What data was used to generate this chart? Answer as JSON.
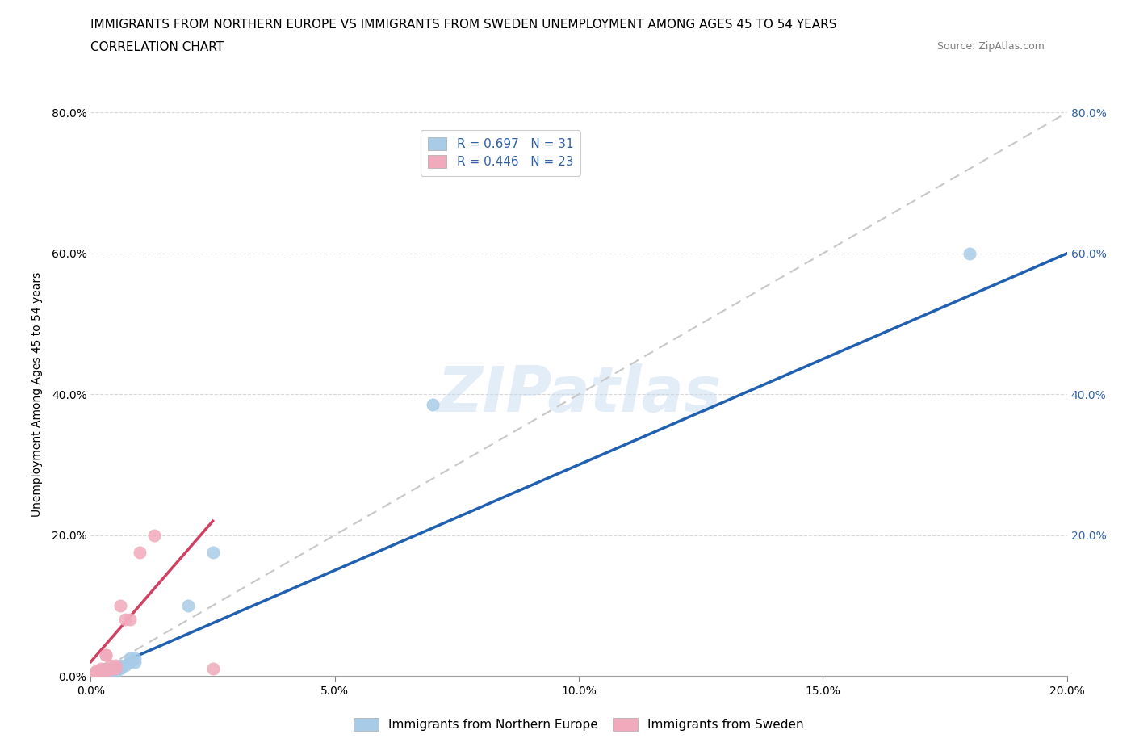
{
  "title_line1": "IMMIGRANTS FROM NORTHERN EUROPE VS IMMIGRANTS FROM SWEDEN UNEMPLOYMENT AMONG AGES 45 TO 54 YEARS",
  "title_line2": "CORRELATION CHART",
  "source": "Source: ZipAtlas.com",
  "ylabel": "Unemployment Among Ages 45 to 54 years",
  "watermark": "ZIPatlas",
  "blue_R": 0.697,
  "blue_N": 31,
  "pink_R": 0.446,
  "pink_N": 23,
  "blue_color": "#A8CCE8",
  "pink_color": "#F0AABB",
  "blue_line_color": "#2060B0",
  "pink_line_color": "#D04060",
  "trend_line_color": "#C8C8C8",
  "blue_label": "Immigrants from Northern Europe",
  "pink_label": "Immigrants from Sweden",
  "xlim": [
    0.0,
    0.2
  ],
  "ylim": [
    0.0,
    0.8
  ],
  "xticks": [
    0.0,
    0.05,
    0.1,
    0.15,
    0.2
  ],
  "yticks": [
    0.0,
    0.2,
    0.4,
    0.6,
    0.8
  ],
  "blue_x": [
    0.0005,
    0.001,
    0.001,
    0.001,
    0.001,
    0.002,
    0.002,
    0.002,
    0.002,
    0.002,
    0.003,
    0.003,
    0.003,
    0.003,
    0.004,
    0.004,
    0.004,
    0.005,
    0.005,
    0.006,
    0.006,
    0.006,
    0.007,
    0.008,
    0.008,
    0.009,
    0.009,
    0.02,
    0.025,
    0.07,
    0.18
  ],
  "blue_y": [
    0.002,
    0.001,
    0.002,
    0.003,
    0.005,
    0.001,
    0.002,
    0.003,
    0.005,
    0.008,
    0.002,
    0.005,
    0.007,
    0.01,
    0.005,
    0.008,
    0.01,
    0.005,
    0.01,
    0.01,
    0.013,
    0.015,
    0.015,
    0.02,
    0.025,
    0.02,
    0.025,
    0.1,
    0.175,
    0.385,
    0.6
  ],
  "pink_x": [
    0.0005,
    0.001,
    0.001,
    0.001,
    0.001,
    0.002,
    0.002,
    0.002,
    0.002,
    0.003,
    0.003,
    0.003,
    0.003,
    0.004,
    0.004,
    0.005,
    0.005,
    0.006,
    0.007,
    0.008,
    0.01,
    0.013,
    0.025
  ],
  "pink_y": [
    0.003,
    0.002,
    0.003,
    0.005,
    0.007,
    0.003,
    0.005,
    0.008,
    0.01,
    0.005,
    0.01,
    0.03,
    0.03,
    0.01,
    0.015,
    0.01,
    0.015,
    0.1,
    0.08,
    0.08,
    0.175,
    0.2,
    0.01
  ],
  "blue_line_x": [
    0.0,
    0.2
  ],
  "blue_line_y": [
    0.0,
    0.6
  ],
  "pink_line_x": [
    0.0,
    0.025
  ],
  "pink_line_y": [
    0.02,
    0.22
  ],
  "gray_line_x": [
    0.0,
    0.2
  ],
  "gray_line_y": [
    0.0,
    0.8
  ],
  "title_fontsize": 11,
  "subtitle_fontsize": 11,
  "source_fontsize": 9,
  "axis_label_fontsize": 10,
  "tick_fontsize": 10,
  "legend_fontsize": 11
}
